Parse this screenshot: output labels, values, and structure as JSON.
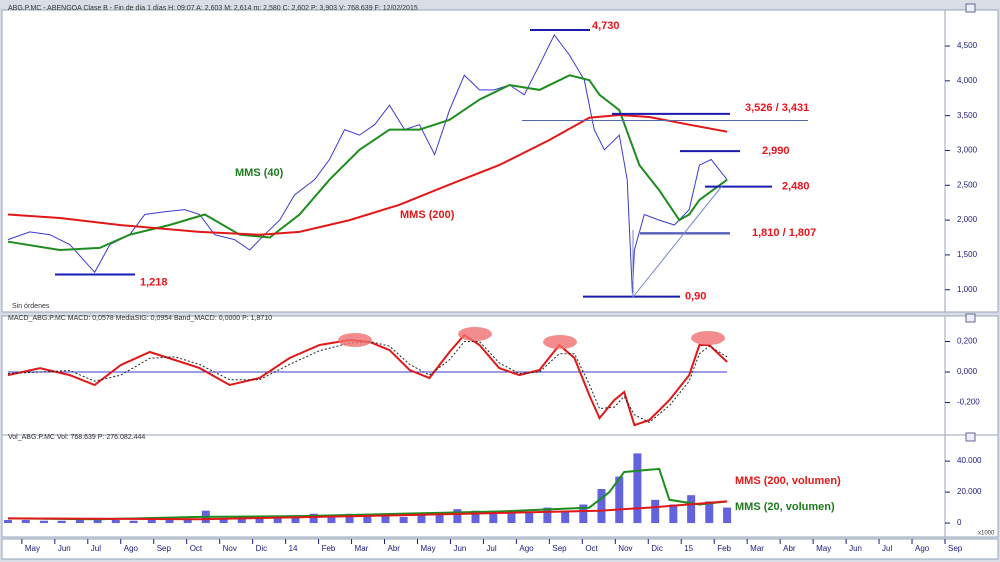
{
  "chart_data": [
    {
      "type": "line",
      "header": "ABG.P.MC - ABENGOA Clase B - Fin de día 1 días  H: 09:07  A: 2,603  M: 2,614  m: 2,580  C: 2,602  P: 3,903  V: 768.639  F: 12/02/2015",
      "note": "Sin órdenes",
      "xlim": [
        -0.42,
        28.0
      ],
      "ylim": [
        0.68,
        4.96
      ],
      "yticks": [
        {
          "value": 1.0,
          "label": "1,000"
        },
        {
          "value": 1.5,
          "label": "1,500"
        },
        {
          "value": 2.0,
          "label": "2,000"
        },
        {
          "value": 2.5,
          "label": "2,500"
        },
        {
          "value": 3.0,
          "label": "3,000"
        },
        {
          "value": 3.5,
          "label": "3,500"
        },
        {
          "value": 4.0,
          "label": "4,000"
        },
        {
          "value": 4.5,
          "label": "4,500"
        }
      ],
      "series": [
        {
          "type": "line",
          "color": "#3a3ad0",
          "x": [
            -0.42,
            0.24,
            0.85,
            1.45,
            2.21,
            2.67,
            3.27,
            3.73,
            4.33,
            4.94,
            5.39,
            5.85,
            6.45,
            6.91,
            7.36,
            7.82,
            8.27,
            8.88,
            9.33,
            9.79,
            10.24,
            10.7,
            11.15,
            11.61,
            12.06,
            12.52,
            12.97,
            13.42,
            13.88,
            14.33,
            14.79,
            15.24,
            15.7,
            16.15,
            16.61,
            17.06,
            17.36,
            17.67,
            18.12,
            18.36,
            18.52,
            18.58,
            18.88,
            19.33,
            19.79,
            20.24,
            20.55,
            20.91,
            21.39
          ],
          "values": [
            1.72,
            1.83,
            1.79,
            1.65,
            1.25,
            1.65,
            1.79,
            2.08,
            2.12,
            2.15,
            2.08,
            1.79,
            1.72,
            1.57,
            1.79,
            2.0,
            2.36,
            2.58,
            2.87,
            3.3,
            3.22,
            3.37,
            3.65,
            3.3,
            3.37,
            2.94,
            3.58,
            4.08,
            3.87,
            3.87,
            3.94,
            3.8,
            4.23,
            4.66,
            4.37,
            4.01,
            3.3,
            3.01,
            3.22,
            2.58,
            0.95,
            1.57,
            2.08,
            2.0,
            1.93,
            2.15,
            2.79,
            2.87,
            2.58
          ]
        },
        {
          "type": "line",
          "name": "MMS (40)",
          "color": "#1e8c1e",
          "x": [
            -0.42,
            1.15,
            2.36,
            3.27,
            4.48,
            5.55,
            6.61,
            7.52,
            8.42,
            9.33,
            10.24,
            11.15,
            12.06,
            12.97,
            13.88,
            14.79,
            15.7,
            16.61,
            17.21,
            17.52,
            18.12,
            18.73,
            19.33,
            19.94,
            20.24,
            20.55,
            21.39
          ],
          "values": [
            1.69,
            1.57,
            1.6,
            1.79,
            1.93,
            2.08,
            1.79,
            1.75,
            2.08,
            2.58,
            3.01,
            3.3,
            3.3,
            3.44,
            3.73,
            3.94,
            3.87,
            4.08,
            4.01,
            3.8,
            3.58,
            2.79,
            2.43,
            2.0,
            2.08,
            2.29,
            2.58
          ]
        },
        {
          "type": "line",
          "name": "MMS (200)",
          "color": "#e01818",
          "x": [
            -0.42,
            1.15,
            2.97,
            5.39,
            7.21,
            8.42,
            9.94,
            11.45,
            12.97,
            14.48,
            16.0,
            17.21,
            18.12,
            19.03,
            20.24,
            21.39
          ],
          "values": [
            2.08,
            2.03,
            1.93,
            1.83,
            1.79,
            1.83,
            2.0,
            2.22,
            2.51,
            2.79,
            3.15,
            3.47,
            3.51,
            3.48,
            3.37,
            3.27
          ]
        }
      ],
      "annotations": [
        {
          "label": "4,730",
          "values": [
            4.73
          ]
        },
        {
          "label": "3,526 / 3,431",
          "values": [
            3.526,
            3.431
          ]
        },
        {
          "label": "2,990",
          "values": [
            2.99
          ]
        },
        {
          "label": "2,480",
          "values": [
            2.48
          ]
        },
        {
          "label": "1,810 / 1,807",
          "values": [
            1.81,
            1.807
          ]
        },
        {
          "label": "0,90",
          "values": [
            0.9
          ]
        },
        {
          "label": "1,218",
          "values": [
            1.218
          ]
        }
      ]
    },
    {
      "type": "line",
      "header": "MACD_ABG.P.MC  MACD: 0,0578  MediaSIG: 0,0954  Band_MACD: 0,0000  P: 1,8710",
      "xlim": [
        -0.42,
        28.0
      ],
      "ylim": [
        -0.426,
        0.328
      ],
      "yticks": [
        {
          "value": -0.2,
          "label": "-0,200"
        },
        {
          "value": 0,
          "label": "0,000"
        },
        {
          "value": 0.2,
          "label": "0,200"
        }
      ],
      "series": [
        {
          "type": "line",
          "color": "#e01818",
          "x": [
            -0.42,
            0.55,
            1.45,
            2.21,
            3.0,
            3.88,
            4.64,
            5.39,
            6.3,
            7.21,
            8.12,
            9.03,
            9.94,
            10.55,
            11.15,
            11.76,
            12.36,
            12.97,
            13.42,
            13.88,
            14.48,
            15.09,
            15.7,
            16.3,
            16.76,
            17.21,
            17.52,
            17.97,
            18.27,
            18.58,
            19.03,
            19.64,
            20.24,
            20.55,
            20.85,
            21.39
          ],
          "values": [
            -0.02,
            0.026,
            -0.02,
            -0.085,
            0.046,
            0.131,
            0.079,
            0.026,
            -0.085,
            -0.039,
            0.092,
            0.177,
            0.21,
            0.197,
            0.144,
            0.013,
            -0.039,
            0.131,
            0.243,
            0.177,
            0.026,
            -0.02,
            0.013,
            0.177,
            0.092,
            -0.151,
            -0.302,
            -0.184,
            -0.131,
            -0.348,
            -0.315,
            -0.184,
            -0.02,
            0.177,
            0.177,
            0.066
          ]
        },
        {
          "type": "line",
          "color": "#222222",
          "dashed": true,
          "x": [
            -0.42,
            0.55,
            1.45,
            2.21,
            3.0,
            3.88,
            4.64,
            5.39,
            6.3,
            7.21,
            8.12,
            9.03,
            9.94,
            10.55,
            11.15,
            11.76,
            12.36,
            12.97,
            13.42,
            13.88,
            14.48,
            15.09,
            15.7,
            16.3,
            16.76,
            17.21,
            17.52,
            17.97,
            18.27,
            18.58,
            19.03,
            19.64,
            20.24,
            20.55,
            20.85,
            21.39
          ],
          "values": [
            -0.01,
            0.0,
            0.01,
            -0.06,
            -0.02,
            0.09,
            0.1,
            0.05,
            -0.05,
            -0.05,
            0.05,
            0.14,
            0.19,
            0.2,
            0.17,
            0.05,
            -0.02,
            0.08,
            0.2,
            0.2,
            0.06,
            -0.01,
            0.0,
            0.12,
            0.12,
            -0.08,
            -0.24,
            -0.23,
            -0.16,
            -0.28,
            -0.33,
            -0.22,
            -0.06,
            0.12,
            0.17,
            0.1
          ]
        }
      ]
    },
    {
      "type": "bar",
      "header": "Vol_ABG.P.MC  Vol: 768.639  P: 276.082.444",
      "unit_label": "x1000",
      "xlim": [
        -0.42,
        28.0
      ],
      "ylim": [
        -9000,
        53000
      ],
      "yticks": [
        0,
        {
          "value": 20000,
          "label": "20.000"
        },
        {
          "value": 40000,
          "label": "40.000"
        }
      ],
      "xticks": [
        {
          "value": 0,
          "label": "May"
        },
        {
          "value": 1,
          "label": "Jun"
        },
        {
          "value": 2,
          "label": "Jul"
        },
        {
          "value": 3,
          "label": "Ago"
        },
        {
          "value": 4,
          "label": "Sep"
        },
        {
          "value": 5,
          "label": "Oct"
        },
        {
          "value": 6,
          "label": "Nov"
        },
        {
          "value": 7,
          "label": "Dic"
        },
        {
          "value": 8,
          "label": "14"
        },
        {
          "value": 9,
          "label": "Feb"
        },
        {
          "value": 10,
          "label": "Mar"
        },
        {
          "value": 11,
          "label": "Abr"
        },
        {
          "value": 12,
          "label": "May"
        },
        {
          "value": 13,
          "label": "Jun"
        },
        {
          "value": 14,
          "label": "Jul"
        },
        {
          "value": 15,
          "label": "Ago"
        },
        {
          "value": 16,
          "label": "Sep"
        },
        {
          "value": 17,
          "label": "Oct"
        },
        {
          "value": 18,
          "label": "Nov"
        },
        {
          "value": 19,
          "label": "Dic"
        },
        {
          "value": 20,
          "label": "15"
        },
        {
          "value": 21,
          "label": "Feb"
        },
        {
          "value": 22,
          "label": "Mar"
        },
        {
          "value": 23,
          "label": "Abr"
        },
        {
          "value": 24,
          "label": "May"
        },
        {
          "value": 25,
          "label": "Jun"
        },
        {
          "value": 26,
          "label": "Jul"
        },
        {
          "value": 27,
          "label": "Ago"
        },
        {
          "value": 28,
          "label": "Sep"
        }
      ],
      "series": [
        {
          "type": "bar",
          "color": "#4848d8",
          "x": [
            -0.42,
            0.12,
            0.67,
            1.21,
            1.76,
            2.3,
            2.85,
            3.39,
            3.94,
            4.48,
            5.03,
            5.58,
            6.12,
            6.67,
            7.21,
            7.76,
            8.3,
            8.85,
            9.39,
            9.94,
            10.48,
            11.03,
            11.58,
            12.12,
            12.67,
            13.21,
            13.76,
            14.3,
            14.85,
            15.39,
            15.94,
            16.48,
            17.03,
            17.58,
            18.12,
            18.67,
            19.21,
            19.76,
            20.3,
            20.85,
            21.39
          ],
          "values": [
            2000,
            2000,
            1500,
            1500,
            2000,
            2000,
            2000,
            1500,
            2000,
            2000,
            2500,
            8000,
            3000,
            3000,
            4000,
            3000,
            5000,
            6000,
            5000,
            6000,
            5000,
            5000,
            4000,
            5000,
            6000,
            9000,
            8000,
            8000,
            7000,
            7000,
            10000,
            8000,
            12000,
            22000,
            30000,
            45000,
            15000,
            12000,
            18000,
            14000,
            10000
          ]
        },
        {
          "type": "line",
          "name": "MMS (20, volumen)",
          "color": "#1e8c1e",
          "x": [
            -0.42,
            2.36,
            5.39,
            8.42,
            11.45,
            14.48,
            17.21,
            17.82,
            18.27,
            19.33,
            19.64,
            20.55,
            21.39
          ],
          "values": [
            3000,
            2500,
            4000,
            4500,
            6000,
            7500,
            10000,
            20000,
            33000,
            35000,
            15000,
            12000,
            14000
          ]
        },
        {
          "type": "line",
          "name": "MMS (200, volumen)",
          "color": "#e01818",
          "x": [
            -0.42,
            5.39,
            11.45,
            17.52,
            19.03,
            21.39
          ],
          "values": [
            3000,
            2500,
            5000,
            8000,
            10000,
            14000
          ]
        }
      ]
    }
  ]
}
